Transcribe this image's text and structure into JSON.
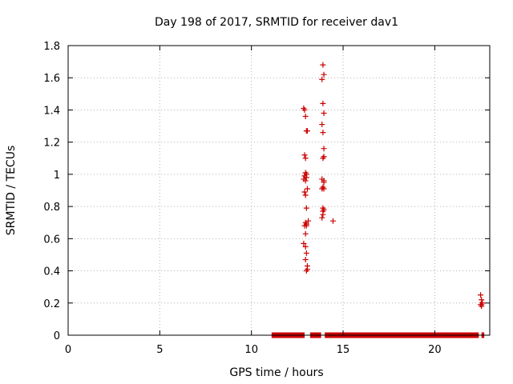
{
  "chart_data": {
    "type": "scatter",
    "title": "Day 198 of 2017, SRMTID for receiver dav1",
    "xlabel": "GPS time / hours",
    "ylabel": "SRMTID / TECUs",
    "xlim": [
      0,
      23
    ],
    "ylim": [
      0,
      1.8
    ],
    "x_ticks": [
      0,
      5,
      10,
      15,
      20
    ],
    "x_tick_labels": [
      "0",
      "5",
      "10",
      "15",
      "20"
    ],
    "y_ticks": [
      0,
      0.2,
      0.4,
      0.6,
      0.8,
      1,
      1.2,
      1.4,
      1.6,
      1.8
    ],
    "y_tick_labels": [
      "0",
      "0.2",
      "0.4",
      "0.6",
      "0.8",
      "1",
      "1.2",
      "1.4",
      "1.6",
      "1.8"
    ],
    "grid": true,
    "marker": "plus",
    "color": "#cc0000",
    "zero_band": {
      "y": 0,
      "x_ranges": [
        [
          11.1,
          12.9
        ],
        [
          13.2,
          13.8
        ],
        [
          14.0,
          22.4
        ],
        [
          22.55,
          22.7
        ]
      ]
    },
    "series": [
      {
        "x": [
          12.85,
          12.9,
          12.95,
          13.0,
          13.05,
          12.9,
          12.95,
          12.95,
          13.0,
          12.9,
          12.85,
          12.95,
          13.0,
          13.05,
          12.9,
          12.95,
          13.0,
          13.1,
          12.95,
          13.0,
          12.9,
          12.85,
          12.95,
          13.0,
          12.95,
          13.05,
          13.05,
          13.0,
          12.95,
          13.0,
          13.9,
          13.95,
          13.85,
          13.9,
          13.95,
          13.85,
          13.9,
          13.95,
          13.95,
          13.9,
          13.85,
          13.95,
          13.9,
          13.85,
          13.9,
          13.95,
          13.9,
          13.9,
          13.85,
          13.95,
          13.95,
          14.45,
          22.5,
          22.55,
          22.6,
          22.55,
          22.5,
          22.55
        ],
        "y": [
          1.41,
          1.4,
          1.36,
          1.27,
          1.27,
          1.12,
          1.1,
          1.01,
          1.0,
          0.99,
          0.97,
          0.96,
          0.98,
          0.91,
          0.89,
          0.87,
          0.79,
          0.71,
          0.7,
          0.69,
          0.68,
          0.57,
          0.55,
          0.51,
          0.47,
          0.43,
          0.41,
          0.4,
          0.63,
          0.68,
          1.68,
          1.62,
          1.59,
          1.44,
          1.38,
          1.31,
          1.26,
          1.16,
          1.11,
          1.1,
          0.97,
          0.95,
          0.92,
          0.91,
          0.79,
          0.78,
          0.77,
          0.75,
          0.73,
          0.96,
          0.91,
          0.71,
          0.25,
          0.22,
          0.2,
          0.19,
          0.19,
          0.18
        ]
      }
    ]
  }
}
